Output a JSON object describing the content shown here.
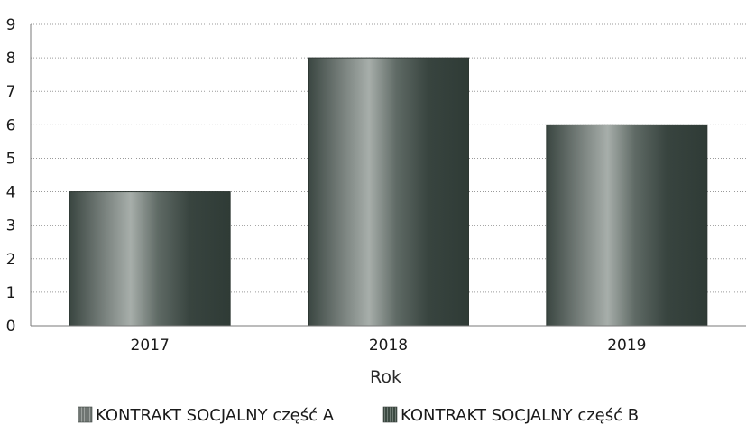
{
  "chart_data": {
    "type": "bar",
    "categories": [
      "2017",
      "2018",
      "2019"
    ],
    "series": [
      {
        "name": "KONTRAKT SOCJALNY część A",
        "values": [
          4,
          8,
          6
        ]
      },
      {
        "name": "KONTRAKT SOCJALNY część B",
        "values": [
          0,
          0,
          0
        ]
      }
    ],
    "xlabel": "Rok",
    "ylabel": "",
    "ylim": [
      0,
      9
    ],
    "yticks": [
      "0",
      "1",
      "2",
      "3",
      "4",
      "5",
      "6",
      "7",
      "8",
      "9"
    ],
    "grid": true,
    "legend_position": "bottom"
  },
  "colors": {
    "bar_dark": "#3e4b45",
    "bar_light": "#9aa39e",
    "legend_a": "#6f7572",
    "legend_b": "#3c4a42"
  }
}
